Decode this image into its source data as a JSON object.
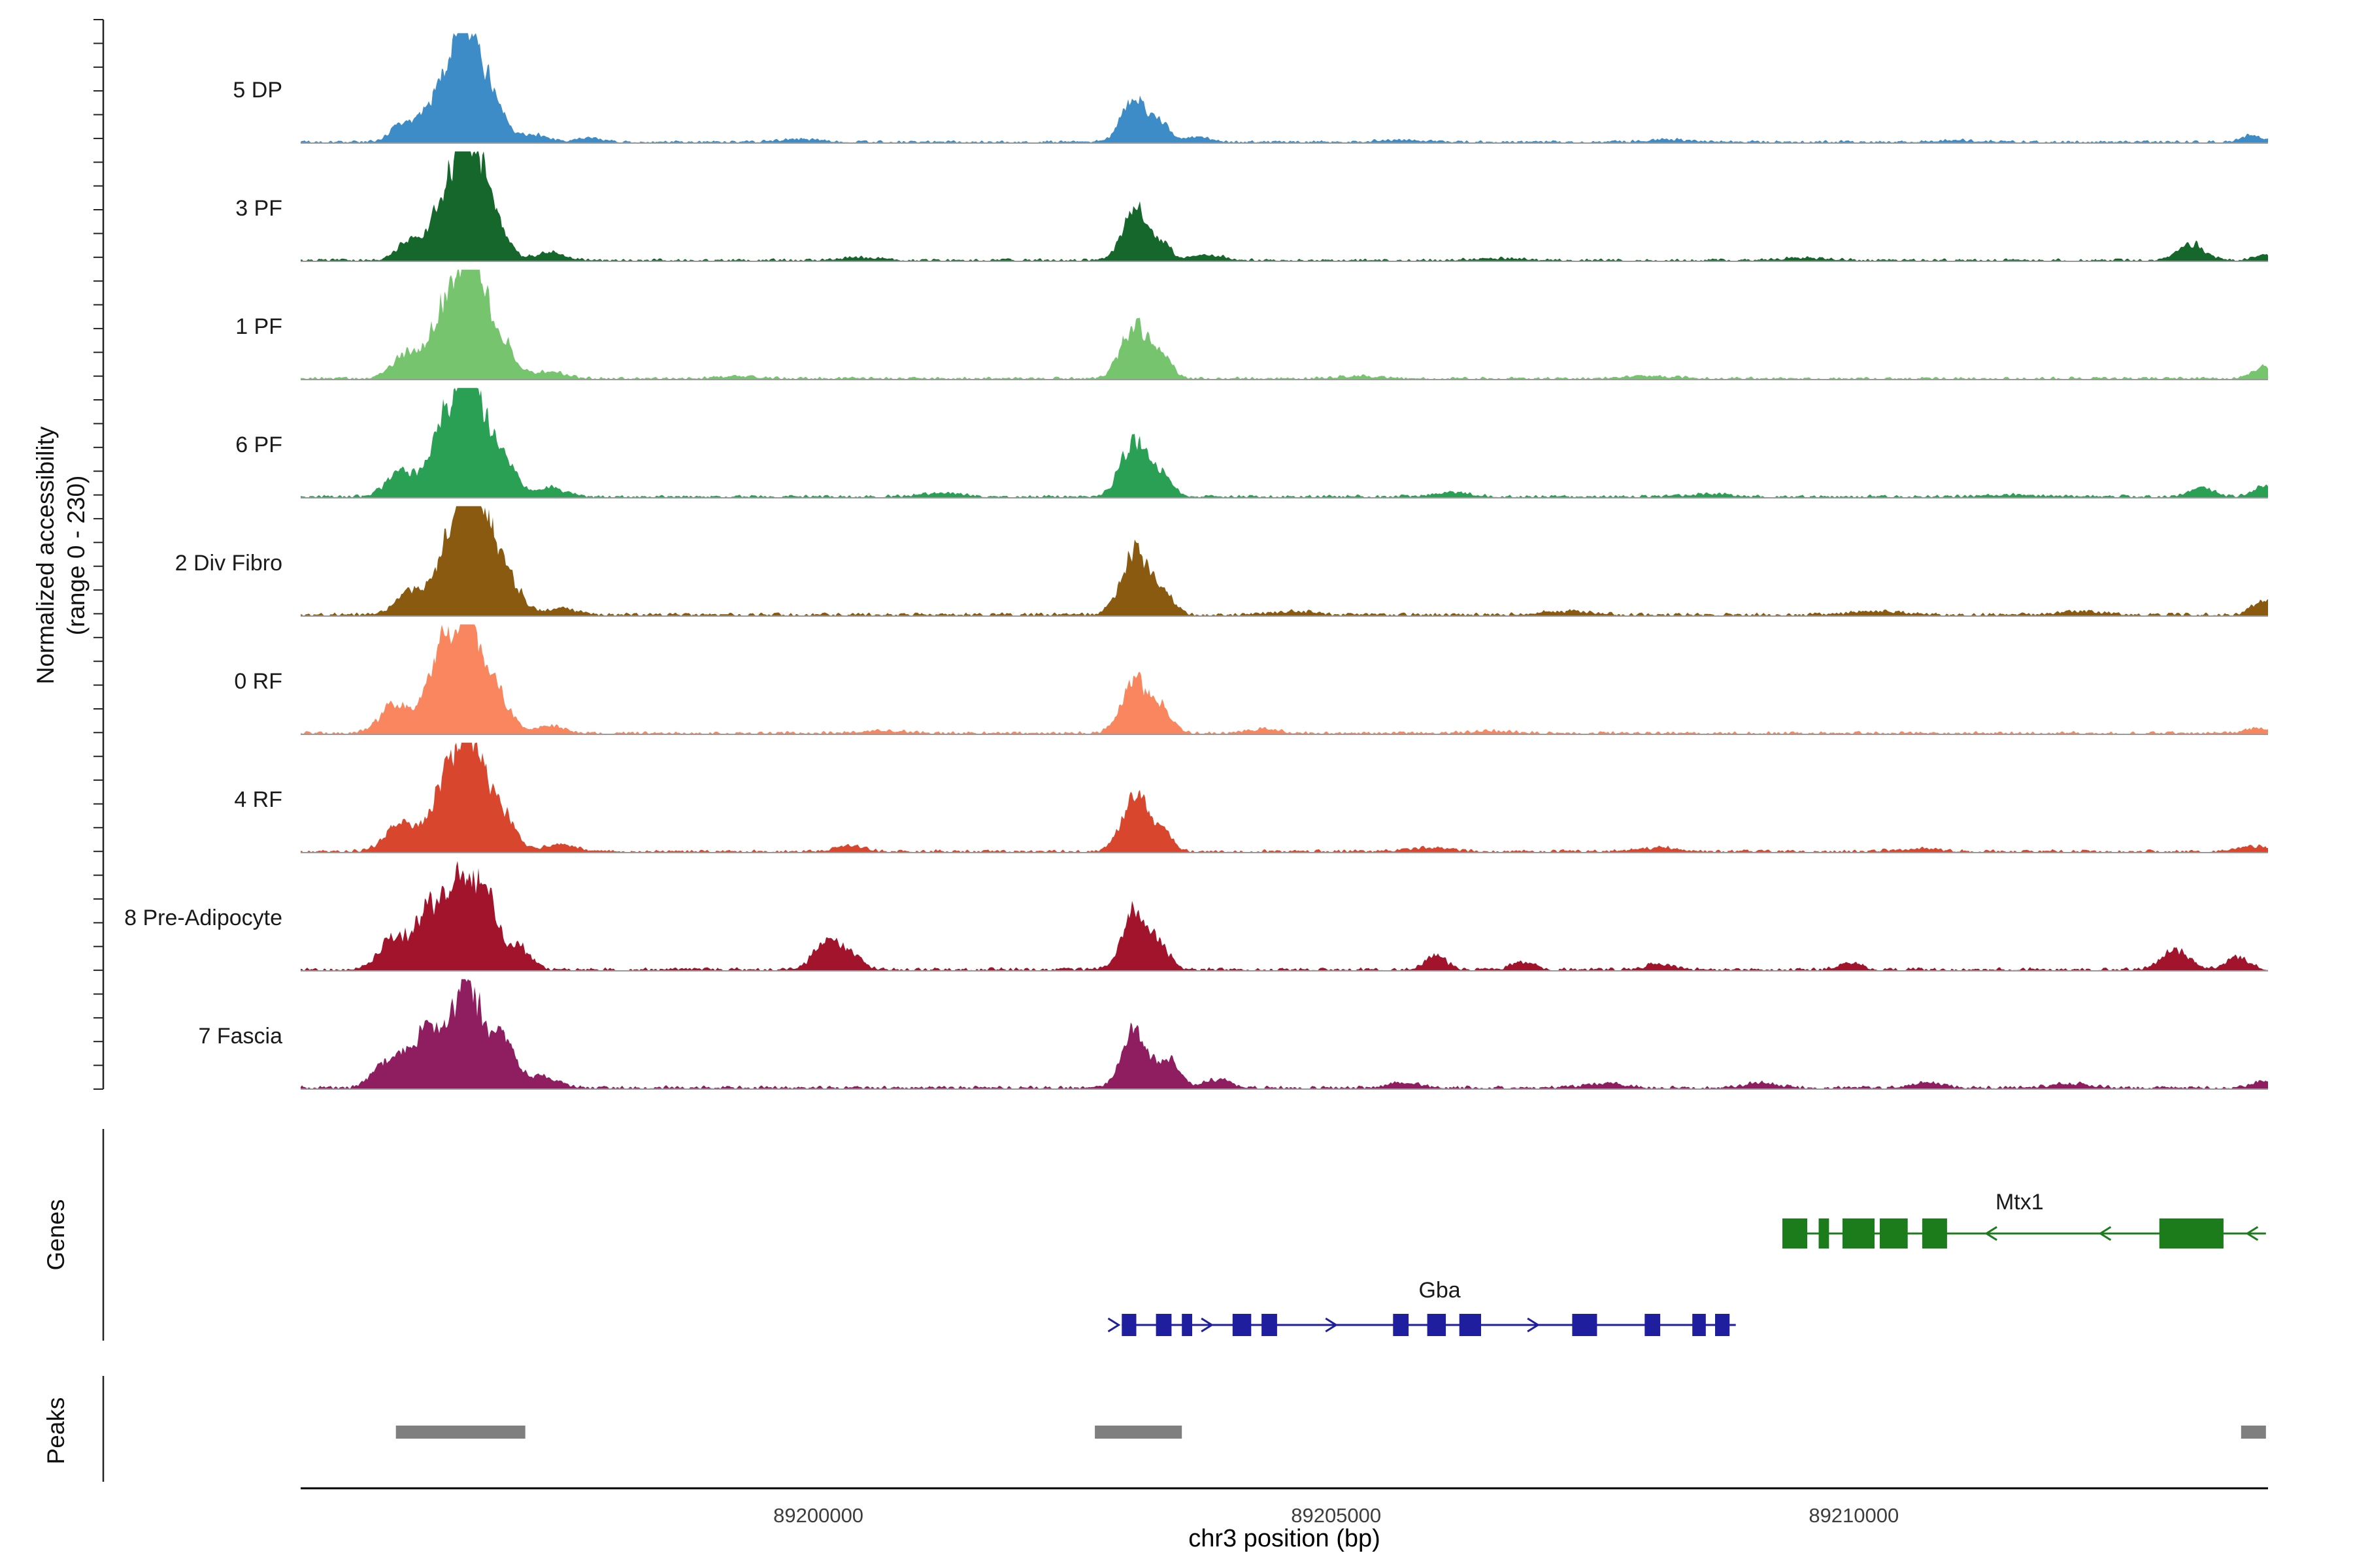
{
  "figure": {
    "ylabel_line1": "Normalized accessibility",
    "ylabel_line2": "(range 0 - 230)",
    "xlabel": "chr3 position (bp)",
    "genes_section_label": "Genes",
    "peaks_section_label": "Peaks"
  },
  "chart_data": {
    "type": "area",
    "title": "",
    "xlabel": "chr3 position (bp)",
    "ylabel": "Normalized accessibility (range 0 - 230)",
    "y_range": [
      0,
      230
    ],
    "x_domain": [
      89195000,
      89214000
    ],
    "x_ticks": [
      {
        "value": 89200000,
        "label": "89200000"
      },
      {
        "value": 89205000,
        "label": "89205000"
      },
      {
        "value": 89210000,
        "label": "89210000"
      }
    ],
    "grid": false,
    "legend": "none",
    "baseline_color": "#9a9a9a",
    "axis_color": "#000000",
    "tick_label_color": "#3d3d3d",
    "bracket_color": "#222222",
    "peak_color": "#7f7f7f",
    "tracks": [
      {
        "label": "5 DP",
        "color": "#3e8cc7",
        "seed": 101,
        "noise": 0.018,
        "peaks": [
          [
            89196000,
            0.18,
            120
          ],
          [
            89196380,
            0.5,
            150
          ],
          [
            89196620,
            0.92,
            130
          ],
          [
            89196880,
            0.3,
            110
          ],
          [
            89197250,
            0.07,
            140
          ],
          [
            89197800,
            0.04,
            120
          ],
          [
            89199800,
            0.025,
            200
          ],
          [
            89203050,
            0.4,
            120
          ],
          [
            89203300,
            0.16,
            90
          ],
          [
            89203650,
            0.05,
            120
          ],
          [
            89205600,
            0.02,
            200
          ],
          [
            89208200,
            0.02,
            250
          ],
          [
            89211000,
            0.015,
            250
          ],
          [
            89213850,
            0.06,
            100
          ]
        ]
      },
      {
        "label": "3 PF",
        "color": "#15672c",
        "seed": 202,
        "noise": 0.018,
        "peaks": [
          [
            89196050,
            0.16,
            120
          ],
          [
            89196420,
            0.55,
            150
          ],
          [
            89196650,
            1.0,
            130
          ],
          [
            89196900,
            0.28,
            110
          ],
          [
            89197400,
            0.07,
            140
          ],
          [
            89200400,
            0.025,
            200
          ],
          [
            89203050,
            0.46,
            120
          ],
          [
            89203320,
            0.14,
            90
          ],
          [
            89203750,
            0.05,
            140
          ],
          [
            89206600,
            0.02,
            250
          ],
          [
            89209500,
            0.02,
            250
          ],
          [
            89213250,
            0.15,
            130
          ],
          [
            89213950,
            0.05,
            100
          ]
        ]
      },
      {
        "label": "1 PF",
        "color": "#76c46e",
        "seed": 303,
        "noise": 0.018,
        "peaks": [
          [
            89196000,
            0.2,
            130
          ],
          [
            89196400,
            0.58,
            150
          ],
          [
            89196650,
            1.0,
            140
          ],
          [
            89196950,
            0.3,
            120
          ],
          [
            89197400,
            0.06,
            140
          ],
          [
            89199200,
            0.02,
            200
          ],
          [
            89203050,
            0.48,
            130
          ],
          [
            89203320,
            0.18,
            90
          ],
          [
            89205200,
            0.02,
            200
          ],
          [
            89208000,
            0.02,
            250
          ],
          [
            89213950,
            0.1,
            110
          ]
        ]
      },
      {
        "label": "6 PF",
        "color": "#2aa055",
        "seed": 404,
        "noise": 0.02,
        "peaks": [
          [
            89195950,
            0.22,
            130
          ],
          [
            89196400,
            0.62,
            150
          ],
          [
            89196650,
            1.0,
            135
          ],
          [
            89196950,
            0.33,
            120
          ],
          [
            89197400,
            0.08,
            140
          ],
          [
            89201200,
            0.03,
            200
          ],
          [
            89203050,
            0.52,
            130
          ],
          [
            89203320,
            0.18,
            95
          ],
          [
            89206100,
            0.035,
            180
          ],
          [
            89208600,
            0.025,
            200
          ],
          [
            89211500,
            0.02,
            220
          ],
          [
            89213350,
            0.08,
            120
          ],
          [
            89213950,
            0.1,
            100
          ]
        ]
      },
      {
        "label": "2 Div Fibro",
        "color": "#8a5a10",
        "seed": 505,
        "noise": 0.022,
        "peaks": [
          [
            89196050,
            0.2,
            130
          ],
          [
            89196450,
            0.6,
            160
          ],
          [
            89196700,
            1.0,
            145
          ],
          [
            89197000,
            0.3,
            125
          ],
          [
            89197500,
            0.06,
            140
          ],
          [
            89203050,
            0.56,
            130
          ],
          [
            89203320,
            0.2,
            100
          ],
          [
            89204600,
            0.035,
            180
          ],
          [
            89207200,
            0.035,
            220
          ],
          [
            89210200,
            0.035,
            220
          ],
          [
            89212200,
            0.03,
            220
          ],
          [
            89213950,
            0.12,
            110
          ]
        ]
      },
      {
        "label": "0 RF",
        "color": "#f9865e",
        "seed": 606,
        "noise": 0.02,
        "peaks": [
          [
            89195900,
            0.25,
            140
          ],
          [
            89196350,
            0.62,
            150
          ],
          [
            89196600,
            0.93,
            135
          ],
          [
            89196900,
            0.35,
            115
          ],
          [
            89197400,
            0.07,
            140
          ],
          [
            89200600,
            0.025,
            200
          ],
          [
            89203050,
            0.5,
            125
          ],
          [
            89203320,
            0.2,
            95
          ],
          [
            89204300,
            0.04,
            140
          ],
          [
            89206500,
            0.02,
            220
          ],
          [
            89213900,
            0.045,
            120
          ]
        ]
      },
      {
        "label": "4 RF",
        "color": "#d9462e",
        "seed": 707,
        "noise": 0.02,
        "peaks": [
          [
            89195950,
            0.25,
            140
          ],
          [
            89196400,
            0.62,
            150
          ],
          [
            89196650,
            0.93,
            135
          ],
          [
            89196950,
            0.33,
            120
          ],
          [
            89197500,
            0.07,
            140
          ],
          [
            89200300,
            0.055,
            130
          ],
          [
            89203050,
            0.5,
            125
          ],
          [
            89203320,
            0.18,
            95
          ],
          [
            89205900,
            0.035,
            180
          ],
          [
            89208100,
            0.03,
            200
          ],
          [
            89210600,
            0.025,
            200
          ],
          [
            89213850,
            0.05,
            130
          ]
        ]
      },
      {
        "label": "8 Pre-Adipocyte",
        "color": "#a1142c",
        "seed": 808,
        "noise": 0.022,
        "peaks": [
          [
            89195900,
            0.3,
            140
          ],
          [
            89196250,
            0.55,
            130
          ],
          [
            89196550,
            0.82,
            120
          ],
          [
            89196800,
            0.62,
            110
          ],
          [
            89197100,
            0.2,
            110
          ],
          [
            89200100,
            0.3,
            130
          ],
          [
            89200350,
            0.1,
            90
          ],
          [
            89203050,
            0.55,
            115
          ],
          [
            89203300,
            0.2,
            95
          ],
          [
            89205950,
            0.13,
            100
          ],
          [
            89206800,
            0.07,
            110
          ],
          [
            89208100,
            0.05,
            120
          ],
          [
            89209950,
            0.06,
            110
          ],
          [
            89213100,
            0.18,
            130
          ],
          [
            89213700,
            0.11,
            110
          ]
        ]
      },
      {
        "label": "7 Fascia",
        "color": "#8e1e5f",
        "seed": 909,
        "noise": 0.022,
        "peaks": [
          [
            89195850,
            0.25,
            140
          ],
          [
            89196200,
            0.5,
            150
          ],
          [
            89196600,
            0.95,
            145
          ],
          [
            89196950,
            0.42,
            125
          ],
          [
            89197350,
            0.1,
            140
          ],
          [
            89203050,
            0.5,
            125
          ],
          [
            89203380,
            0.24,
            105
          ],
          [
            89203850,
            0.08,
            130
          ],
          [
            89205650,
            0.05,
            150
          ],
          [
            89207600,
            0.035,
            200
          ],
          [
            89209100,
            0.045,
            150
          ],
          [
            89210700,
            0.05,
            150
          ],
          [
            89212100,
            0.035,
            200
          ],
          [
            89213950,
            0.07,
            110
          ]
        ]
      }
    ],
    "genes": [
      {
        "name": "Mtx1",
        "strand": "-",
        "color": "#1c7c1c",
        "lane": "upper",
        "start": 89209310,
        "end": 89213980,
        "label_x": 89211600,
        "exons": [
          [
            89209310,
            89209550
          ],
          [
            89209660,
            89209760
          ],
          [
            89209890,
            89210200
          ],
          [
            89210250,
            89210520
          ],
          [
            89210660,
            89210900
          ],
          [
            89212950,
            89213570
          ]
        ],
        "arrows": [
          89211280,
          89212380,
          89213800
        ]
      },
      {
        "name": "Gba",
        "strand": "+",
        "color": "#1e1e9e",
        "lane": "lower",
        "start": 89202930,
        "end": 89208860,
        "label_x": 89206000,
        "exons": [
          [
            89202930,
            89203070
          ],
          [
            89203260,
            89203410
          ],
          [
            89203510,
            89203610
          ],
          [
            89204000,
            89204180
          ],
          [
            89204280,
            89204430
          ],
          [
            89205550,
            89205700
          ],
          [
            89205880,
            89206060
          ],
          [
            89206190,
            89206400
          ],
          [
            89207280,
            89207520
          ],
          [
            89207980,
            89208130
          ],
          [
            89208440,
            89208570
          ],
          [
            89208660,
            89208800
          ]
        ],
        "arrows": [
          89202900,
          89203800,
          89205000,
          89206950
        ]
      }
    ],
    "peaks_regions": [
      [
        89195920,
        89197170
      ],
      [
        89202670,
        89203510
      ],
      [
        89213740,
        89213980
      ]
    ]
  }
}
